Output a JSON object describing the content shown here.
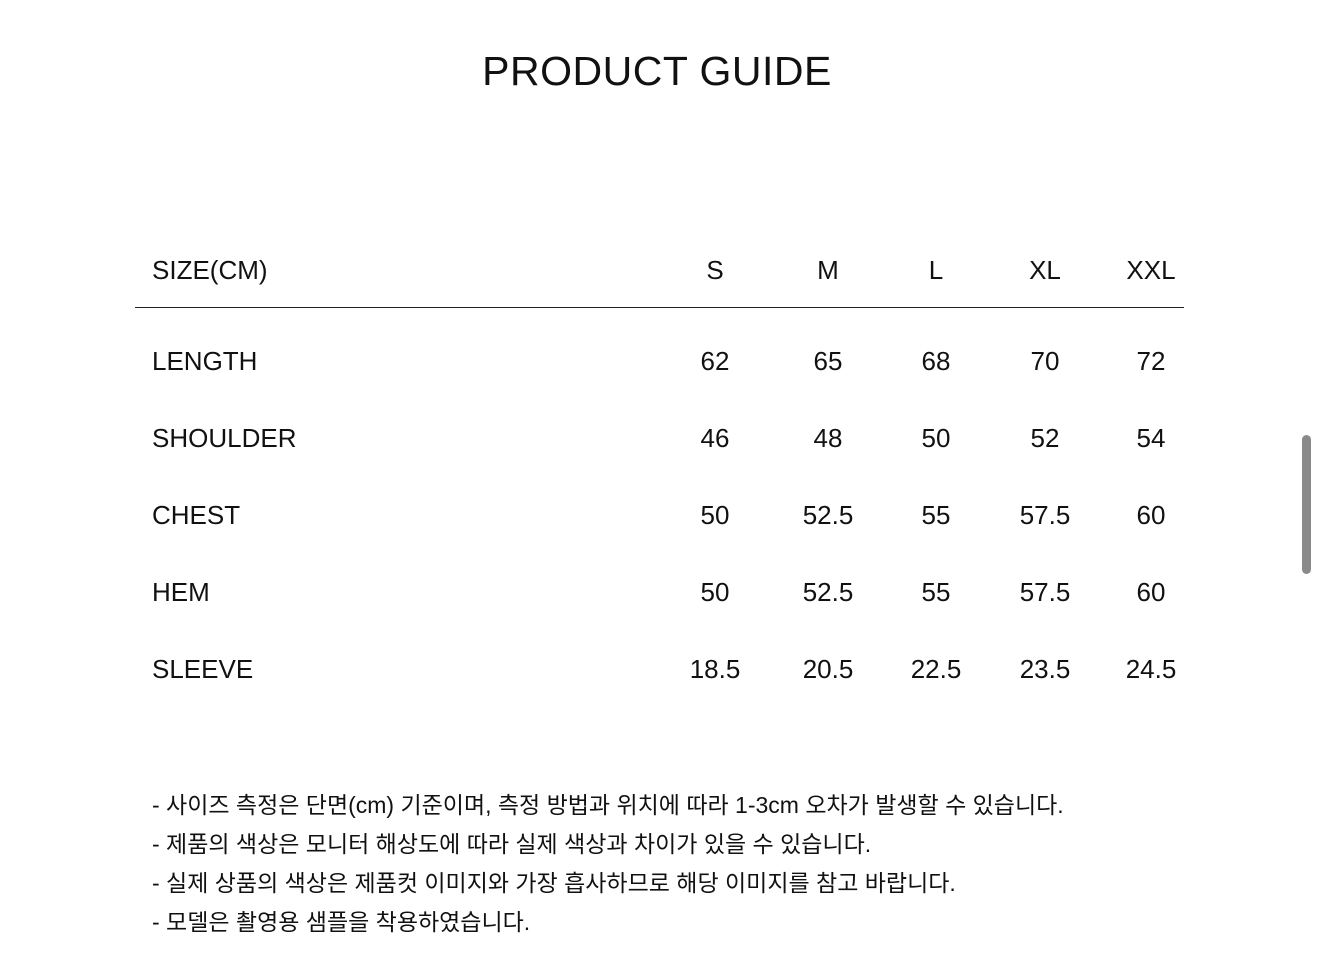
{
  "title": "PRODUCT GUIDE",
  "table": {
    "header": {
      "label": "SIZE(CM)",
      "sizes": [
        "S",
        "M",
        "L",
        "XL",
        "XXL"
      ]
    },
    "rows": [
      {
        "label": "LENGTH",
        "values": [
          "62",
          "65",
          "68",
          "70",
          "72"
        ]
      },
      {
        "label": "SHOULDER",
        "values": [
          "46",
          "48",
          "50",
          "52",
          "54"
        ]
      },
      {
        "label": "CHEST",
        "values": [
          "50",
          "52.5",
          "55",
          "57.5",
          "60"
        ]
      },
      {
        "label": "HEM",
        "values": [
          "50",
          "52.5",
          "55",
          "57.5",
          "60"
        ]
      },
      {
        "label": "SLEEVE",
        "values": [
          "18.5",
          "20.5",
          "22.5",
          "23.5",
          "24.5"
        ]
      }
    ]
  },
  "notes": [
    "- 사이즈 측정은 단면(cm) 기준이며, 측정 방법과 위치에 따라 1-3cm 오차가 발생할 수 있습니다.",
    "- 제품의 색상은 모니터 해상도에 따라 실제 색상과 차이가 있을 수 있습니다.",
    "- 실제 상품의 색상은 제품컷 이미지와 가장 흡사하므로 해당 이미지를 참고 바랍니다.",
    "- 모델은 촬영용 샘플을 착용하였습니다."
  ]
}
